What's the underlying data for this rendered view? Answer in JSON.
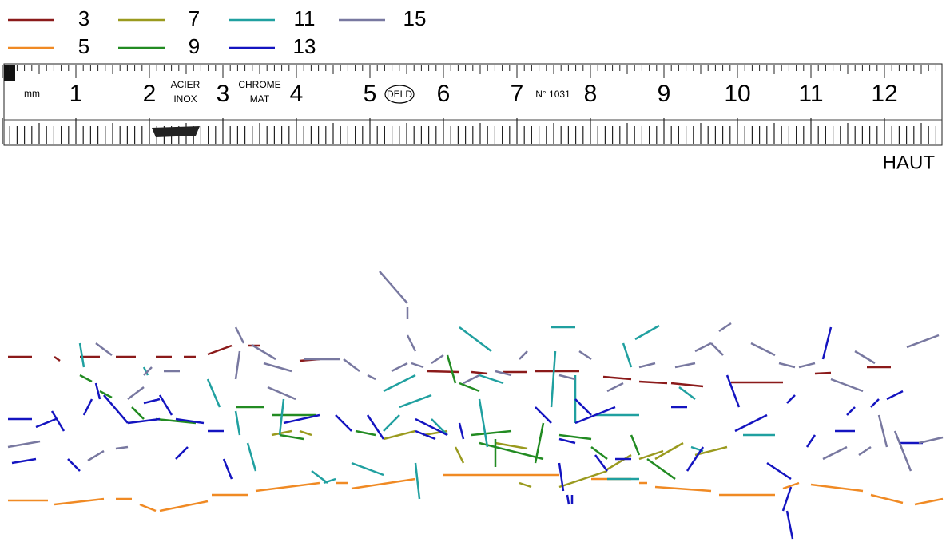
{
  "legend": [
    {
      "label": "3",
      "color": "#8b1a1a"
    },
    {
      "label": "5",
      "color": "#f08a24"
    },
    {
      "label": "7",
      "color": "#9a9a1e"
    },
    {
      "label": "9",
      "color": "#228b22"
    },
    {
      "label": "11",
      "color": "#20a0a0"
    },
    {
      "label": "13",
      "color": "#1414c0"
    },
    {
      "label": "15",
      "color": "#7878a0"
    }
  ],
  "ruler": {
    "unit": "mm",
    "numbers": [
      "1",
      "2",
      "3",
      "4",
      "5",
      "6",
      "7",
      "8",
      "9",
      "10",
      "11",
      "12"
    ],
    "inscriptions": [
      "ACIER",
      "INOX",
      "CHROME",
      "MAT",
      "DELD",
      "N° 1031"
    ]
  },
  "orientation_label": "HAUT"
}
